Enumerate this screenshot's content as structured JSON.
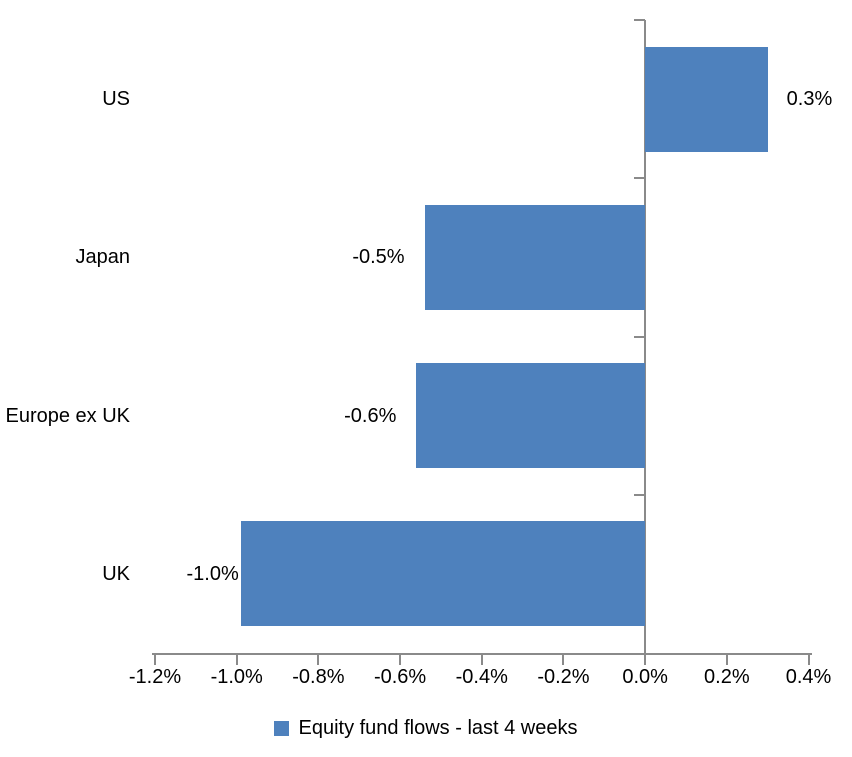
{
  "chart_data": {
    "type": "bar",
    "orientation": "horizontal",
    "title": "",
    "xlabel": "",
    "ylabel": "",
    "categories": [
      "US",
      "Japan",
      "Europe ex UK",
      "UK"
    ],
    "series": [
      {
        "name": "Equity fund flows - last 4 weeks",
        "values": [
          0.3,
          -0.54,
          -0.56,
          -0.99
        ],
        "data_labels": [
          "0.3%",
          "-0.5%",
          "-0.6%",
          "-1.0%"
        ]
      }
    ],
    "xlim": [
      -1.2,
      0.4
    ],
    "x_tick_step": 0.2,
    "x_tick_labels": [
      "-1.2%",
      "-1.0%",
      "-0.8%",
      "-0.6%",
      "-0.4%",
      "-0.2%",
      "0.0%",
      "0.2%",
      "0.4%"
    ],
    "grid": false,
    "data_label_position": "outside-end",
    "label_gaps": [
      19,
      20,
      20,
      2
    ],
    "legend": {
      "position": "bottom",
      "label": "Equity fund flows - last 4 weeks"
    },
    "colors": {
      "bar": "#4E81BD",
      "axis": "#8A8A8A",
      "text": "#000000"
    }
  }
}
